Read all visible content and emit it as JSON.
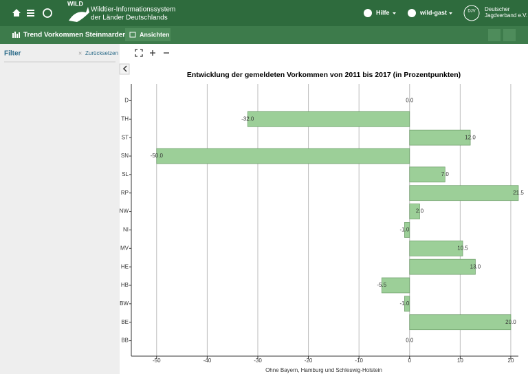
{
  "header": {
    "logo": "WILD",
    "system_name": [
      "Wildtier-Informationssystem",
      "der Länder Deutschlands"
    ],
    "help": "Hilfe",
    "user": "wild-gast",
    "partner_logo": "DJV",
    "partner": [
      "Deutscher",
      "Jagdverband e.V."
    ]
  },
  "toolbar": {
    "title": "Trend Vorkommen Steinmarder",
    "views": "Ansichten"
  },
  "sidebar": {
    "title": "Filter",
    "reset": "Zurücksetzen"
  },
  "chart_data": {
    "type": "barh",
    "title": "Entwicklung der gemeldeten Vorkommen von 2011 bis 2017 (in Prozentpunkten)",
    "x_label": "Ohne Bayern, Hamburg und Schleswig-Holstein",
    "categories": [
      "D",
      "TH",
      "ST",
      "SN",
      "SL",
      "RP",
      "NW",
      "NI",
      "MV",
      "HE",
      "HB",
      "BW",
      "BE",
      "BB"
    ],
    "values": [
      0,
      -32,
      12,
      -50,
      7,
      21.5,
      2,
      -1,
      10.5,
      13,
      -5.5,
      -1,
      20,
      0
    ],
    "value_labels": [
      "0.0",
      "-32.0",
      "12.0",
      "-50.0",
      "7.0",
      "21.5",
      "2.0",
      "-1.0",
      "10.5",
      "13.0",
      "-5.5",
      "-1.0",
      "20.0",
      "0.0"
    ],
    "color": "#9ccf98",
    "xlim": [
      -55,
      21.5
    ],
    "xticks": [
      -50,
      -40,
      -30,
      -20,
      -10,
      0,
      10,
      20
    ],
    "grid": true
  }
}
